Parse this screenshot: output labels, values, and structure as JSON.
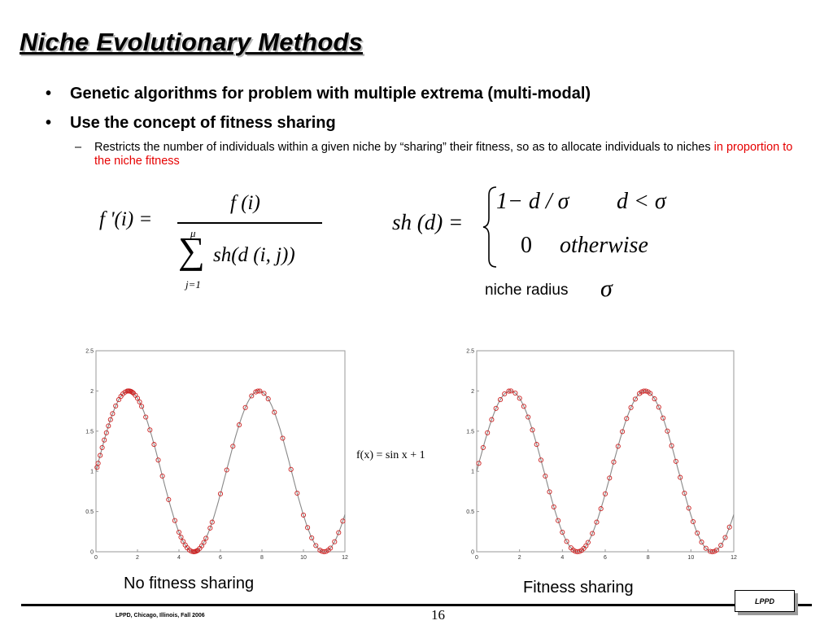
{
  "slide": {
    "title": "Niche Evolutionary Methods",
    "bullets": [
      "Genetic algorithms for problem with multiple extrema (multi-modal)",
      "Use the concept of fitness sharing"
    ],
    "sub_bullet": {
      "text": "Restricts the number of individuals within a given niche by “sharing” their fitness, so as to allocate individuals to niches ",
      "highlight": "in proportion to the niche fitness",
      "highlight_color": "#e60000"
    },
    "niche_radius_label": "niche radius",
    "function_label": "f(x) = sin x + 1",
    "captions": [
      "No fitness sharing",
      "Fitness sharing"
    ],
    "footer": "LPPD, Chicago, Illinois, Fall 2006",
    "page_number": "16",
    "logo": "LPPD"
  },
  "equations": {
    "fitness_shared": {
      "lhs": "f '(i) =",
      "numerator": "f (i)",
      "sum_upper": "μ",
      "sum_lower": "j=1",
      "denominator": "sh(d (i, j))"
    },
    "sharing_function": {
      "lhs": "sh (d) =",
      "case1_expr": "1− d / σ",
      "case1_cond": "d < σ",
      "case2_expr": "0",
      "case2_cond": "otherwise"
    },
    "sigma": "σ"
  },
  "chart_data": [
    {
      "type": "scatter",
      "title": "No fitness sharing",
      "function": "sin(x)+1",
      "xlim": [
        0,
        12
      ],
      "ylim": [
        0,
        2.5
      ],
      "xticks": [
        0,
        2,
        4,
        6,
        8,
        10,
        12
      ],
      "yticks": [
        0,
        0.5,
        1,
        1.5,
        2,
        2.5
      ],
      "curve_color": "#888888",
      "point_color": "#cc2222",
      "points_x": [
        0.05,
        0.1,
        0.2,
        0.3,
        0.4,
        0.5,
        0.6,
        0.7,
        0.8,
        0.95,
        1.1,
        1.2,
        1.3,
        1.4,
        1.5,
        1.55,
        1.6,
        1.65,
        1.7,
        1.75,
        1.8,
        1.9,
        2.0,
        2.1,
        2.2,
        2.4,
        2.6,
        2.8,
        3.0,
        3.2,
        3.5,
        3.8,
        4.0,
        4.1,
        4.2,
        4.3,
        4.4,
        4.5,
        4.6,
        4.7,
        4.75,
        4.8,
        4.85,
        4.9,
        5.0,
        5.1,
        5.2,
        5.3,
        5.5,
        5.6,
        6.0,
        6.3,
        6.6,
        6.9,
        7.2,
        7.5,
        7.7,
        7.8,
        7.9,
        8.1,
        8.3,
        8.6,
        9.0,
        9.4,
        9.7,
        10.0,
        10.2,
        10.4,
        10.6,
        10.8,
        10.9,
        11.0,
        11.1,
        11.2,
        11.3,
        11.5,
        11.7,
        11.9
      ]
    },
    {
      "type": "scatter",
      "title": "Fitness sharing",
      "function": "sin(x)+1",
      "xlim": [
        0,
        12
      ],
      "ylim": [
        0,
        2.5
      ],
      "xticks": [
        0,
        2,
        4,
        6,
        8,
        10,
        12
      ],
      "yticks": [
        0,
        0.5,
        1,
        1.5,
        2,
        2.5
      ],
      "curve_color": "#888888",
      "point_color": "#cc2222",
      "points_x": [
        0.1,
        0.3,
        0.5,
        0.7,
        0.9,
        1.1,
        1.3,
        1.5,
        1.6,
        1.8,
        2.0,
        2.2,
        2.4,
        2.6,
        2.8,
        3.0,
        3.2,
        3.4,
        3.6,
        3.8,
        4.0,
        4.2,
        4.4,
        4.5,
        4.6,
        4.7,
        4.8,
        4.9,
        5.0,
        5.1,
        5.2,
        5.4,
        5.6,
        5.8,
        6.0,
        6.2,
        6.4,
        6.6,
        6.8,
        7.0,
        7.2,
        7.4,
        7.6,
        7.7,
        7.8,
        7.9,
        8.0,
        8.1,
        8.3,
        8.5,
        8.7,
        8.9,
        9.1,
        9.3,
        9.5,
        9.7,
        9.9,
        10.1,
        10.3,
        10.5,
        10.7,
        10.9,
        11.0,
        11.1,
        11.2,
        11.4,
        11.6,
        11.8
      ]
    }
  ]
}
